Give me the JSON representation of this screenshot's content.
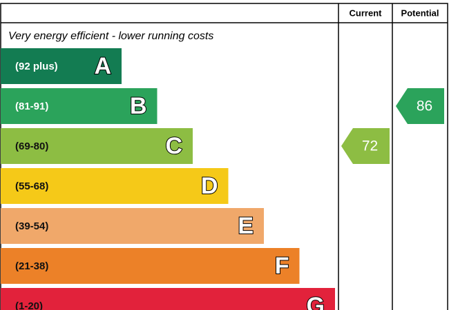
{
  "chart_data": {
    "type": "epc",
    "columns": [
      "Current",
      "Potential"
    ],
    "top_note": "Very energy efficient - lower running costs",
    "bands": [
      {
        "range": "(92 plus)",
        "letter": "A",
        "color": "#137c52",
        "text_color": "#ffffff"
      },
      {
        "range": "(81-91)",
        "letter": "B",
        "color": "#2ba35b",
        "text_color": "#ffffff"
      },
      {
        "range": "(69-80)",
        "letter": "C",
        "color": "#8dbd43",
        "text_color": "#111111"
      },
      {
        "range": "(55-68)",
        "letter": "D",
        "color": "#f5c918",
        "text_color": "#111111"
      },
      {
        "range": "(39-54)",
        "letter": "E",
        "color": "#f0a86a",
        "text_color": "#111111"
      },
      {
        "range": "(21-38)",
        "letter": "F",
        "color": "#ec8128",
        "text_color": "#111111"
      },
      {
        "range": "(1-20)",
        "letter": "G",
        "color": "#e2223b",
        "text_color": "#111111"
      }
    ],
    "ratings": [
      72,
      86
    ]
  }
}
